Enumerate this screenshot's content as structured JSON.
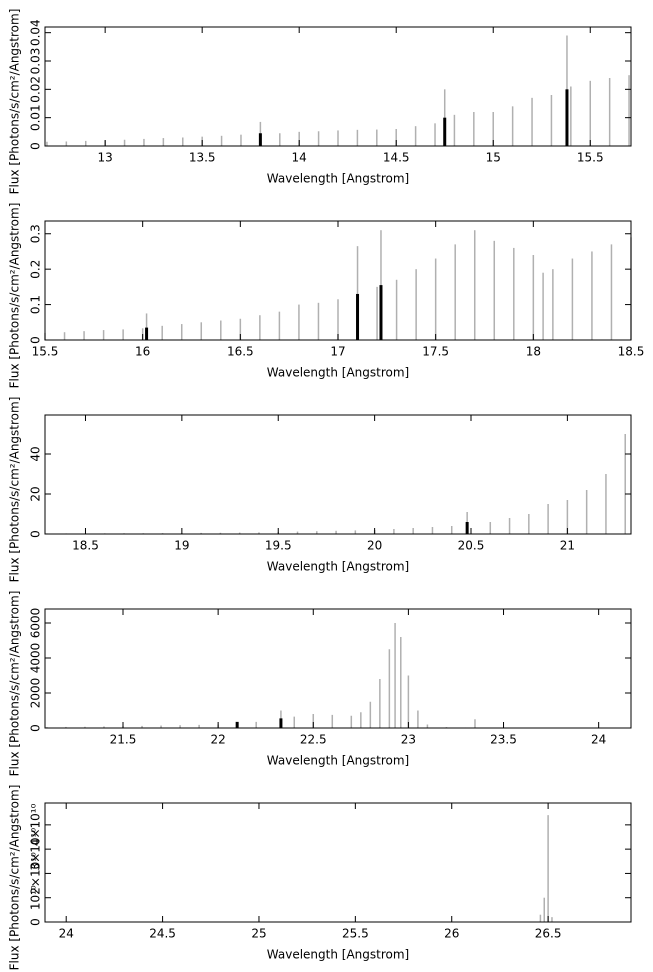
{
  "chart_data": [
    {
      "type": "impulse",
      "xlabel": "Wavelength [Angstrom]",
      "ylabel": "Flux [Photons/s/cm²/Angstrom]",
      "xlim": [
        12.69,
        15.71
      ],
      "ylim": [
        0,
        0.042
      ],
      "xticks": [
        13,
        13.5,
        14,
        14.5,
        15,
        15.5
      ],
      "yticks": [
        0,
        0.01,
        0.02,
        0.03,
        0.04
      ],
      "series": [
        {
          "color": "#b0b0b0",
          "x": [
            12.7,
            12.8,
            12.9,
            13.0,
            13.1,
            13.2,
            13.3,
            13.4,
            13.5,
            13.6,
            13.7,
            13.8,
            13.9,
            14.0,
            14.1,
            14.2,
            14.3,
            14.4,
            14.5,
            14.6,
            14.7,
            14.75,
            14.8,
            14.9,
            15.0,
            15.1,
            15.2,
            15.3,
            15.38,
            15.4,
            15.5,
            15.6,
            15.7
          ],
          "values": [
            0.0015,
            0.0016,
            0.0018,
            0.002,
            0.0022,
            0.0025,
            0.0028,
            0.003,
            0.0033,
            0.0036,
            0.004,
            0.0085,
            0.0045,
            0.005,
            0.0052,
            0.0055,
            0.0057,
            0.0058,
            0.006,
            0.007,
            0.008,
            0.02,
            0.011,
            0.012,
            0.012,
            0.014,
            0.017,
            0.018,
            0.039,
            0.021,
            0.023,
            0.024,
            0.025
          ]
        },
        {
          "color": "#000000",
          "x": [
            13.8,
            14.75,
            15.38
          ],
          "values": [
            0.0045,
            0.01,
            0.02
          ]
        }
      ]
    },
    {
      "type": "impulse",
      "xlabel": "Wavelength [Angstrom]",
      "ylabel": "Flux [Photons/s/cm²/Angstrom]",
      "xlim": [
        15.5,
        18.5
      ],
      "ylim": [
        0,
        0.336
      ],
      "xticks": [
        15.5,
        16,
        16.5,
        17,
        17.5,
        18,
        18.5
      ],
      "yticks": [
        0,
        0.1,
        0.2,
        0.3
      ],
      "series": [
        {
          "color": "#b0b0b0",
          "x": [
            15.5,
            15.6,
            15.7,
            15.8,
            15.9,
            16.0,
            16.02,
            16.1,
            16.2,
            16.3,
            16.4,
            16.5,
            16.6,
            16.7,
            16.8,
            16.9,
            17.0,
            17.1,
            17.2,
            17.22,
            17.3,
            17.4,
            17.5,
            17.6,
            17.7,
            17.8,
            17.9,
            18.0,
            18.05,
            18.1,
            18.2,
            18.3,
            18.4,
            18.5
          ],
          "values": [
            0.02,
            0.022,
            0.025,
            0.028,
            0.03,
            0.033,
            0.075,
            0.04,
            0.045,
            0.05,
            0.055,
            0.06,
            0.07,
            0.08,
            0.1,
            0.105,
            0.115,
            0.265,
            0.15,
            0.31,
            0.17,
            0.2,
            0.23,
            0.27,
            0.31,
            0.28,
            0.26,
            0.24,
            0.19,
            0.2,
            0.23,
            0.25,
            0.27,
            0.29
          ]
        },
        {
          "color": "#000000",
          "x": [
            16.02,
            17.1,
            17.22
          ],
          "values": [
            0.035,
            0.13,
            0.155
          ]
        }
      ]
    },
    {
      "type": "impulse",
      "xlabel": "Wavelength [Angstrom]",
      "ylabel": "Flux [Photons/s/cm²/Angstrom]",
      "xlim": [
        18.29,
        21.33
      ],
      "ylim": [
        0,
        59.5
      ],
      "xticks": [
        18.5,
        19,
        19.5,
        20,
        20.5,
        21
      ],
      "yticks": [
        0,
        20,
        40
      ],
      "series": [
        {
          "color": "#b0b0b0",
          "x": [
            18.3,
            18.4,
            18.5,
            18.6,
            18.7,
            18.8,
            18.9,
            19.0,
            19.1,
            19.2,
            19.3,
            19.4,
            19.5,
            19.6,
            19.7,
            19.8,
            19.9,
            20.0,
            20.1,
            20.2,
            20.3,
            20.4,
            20.48,
            20.6,
            20.7,
            20.8,
            20.9,
            21.0,
            21.1,
            21.2,
            21.3
          ],
          "values": [
            0.3,
            0.3,
            0.3,
            0.35,
            0.4,
            0.4,
            0.45,
            0.5,
            0.55,
            0.6,
            0.7,
            0.8,
            1,
            1.2,
            1.4,
            1.6,
            1.8,
            2,
            2.5,
            3,
            3.5,
            4,
            11,
            6,
            8,
            10,
            15,
            17,
            22,
            30,
            50
          ]
        },
        {
          "color": "#000000",
          "x": [
            20.48
          ],
          "values": [
            6
          ]
        }
      ]
    },
    {
      "type": "impulse",
      "xlabel": "Wavelength [Angstrom]",
      "ylabel": "Flux [Photons/s/cm²/Angstrom]",
      "xlim": [
        21.09,
        24.17
      ],
      "ylim": [
        0,
        6800
      ],
      "xticks": [
        21.5,
        22,
        22.5,
        23,
        23.5,
        24
      ],
      "yticks": [
        0,
        2000,
        4000,
        6000
      ],
      "series": [
        {
          "color": "#b0b0b0",
          "x": [
            21.1,
            21.2,
            21.3,
            21.4,
            21.5,
            21.6,
            21.7,
            21.8,
            21.9,
            22.0,
            22.1,
            22.2,
            22.33,
            22.4,
            22.5,
            22.6,
            22.7,
            22.75,
            22.8,
            22.85,
            22.9,
            22.93,
            22.96,
            23.0,
            23.05,
            23.1,
            23.2,
            23.3,
            23.35,
            23.4,
            23.5,
            23.6,
            23.7,
            23.8,
            23.9,
            24.0,
            24.1
          ],
          "values": [
            50,
            60,
            70,
            90,
            100,
            120,
            140,
            160,
            180,
            200,
            260,
            350,
            1000,
            650,
            800,
            750,
            700,
            900,
            1500,
            2800,
            4500,
            6000,
            5200,
            3000,
            1000,
            200,
            50,
            30,
            500,
            20,
            10,
            10,
            10,
            10,
            10,
            10,
            10
          ]
        },
        {
          "color": "#000000",
          "x": [
            22.1,
            22.33
          ],
          "values": [
            350,
            550
          ]
        }
      ]
    },
    {
      "type": "impulse",
      "xlabel": "Wavelength [Angstrom]",
      "ylabel": "Flux [Photons/s/cm²/Angstrom]",
      "xlim": [
        23.89,
        26.93
      ],
      "ylim": [
        0,
        49000000000
      ],
      "xticks": [
        24,
        24.5,
        25,
        25.5,
        26,
        26.5
      ],
      "yticks": [
        0,
        {
          "value": 10000000000,
          "label": "10¹⁰"
        },
        {
          "value": 20000000000,
          "label": "2×10¹⁰"
        },
        {
          "value": 30000000000,
          "label": "3×10¹⁰"
        },
        {
          "value": 40000000000,
          "label": "4×10¹⁰"
        }
      ],
      "series": [
        {
          "color": "#b0b0b0",
          "x": [
            24,
            24.5,
            25,
            25.5,
            26,
            26.46,
            26.48,
            26.5,
            26.52,
            26.9
          ],
          "values": [
            0,
            0,
            0,
            0,
            0,
            3000000000,
            10000000000,
            44000000000,
            2000000000,
            0
          ]
        }
      ]
    }
  ]
}
